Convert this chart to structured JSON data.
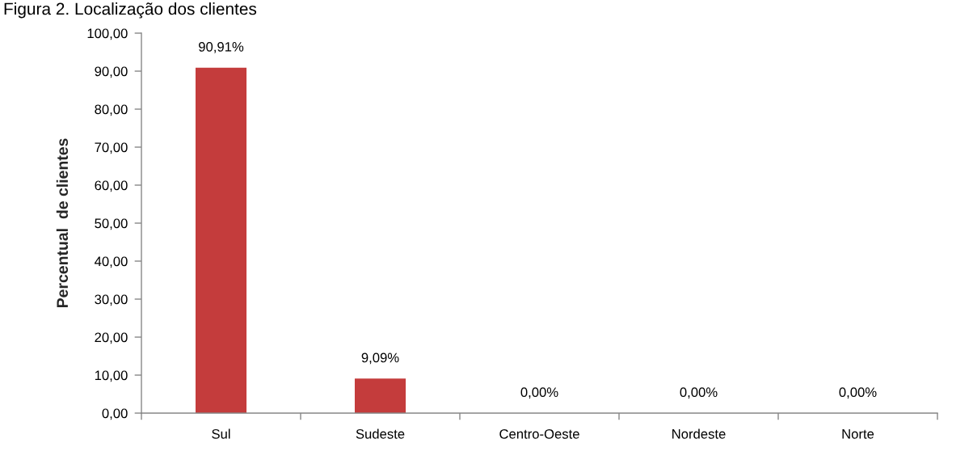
{
  "chart_data": {
    "type": "bar",
    "title": "Figura 2. Localização dos clientes",
    "ylabel": "Percentual  de clientes",
    "categories": [
      "Sul",
      "Sudeste",
      "Centro-Oeste",
      "Nordeste",
      "Norte"
    ],
    "values": [
      90.91,
      9.09,
      0,
      0,
      0
    ],
    "color": "#c43c3c",
    "value_labels": [
      "90,91%",
      "9,09%",
      "0,00%",
      "0,00%",
      "0,00%"
    ],
    "ylim": [
      0,
      100
    ],
    "yticks": [
      {
        "value": 0,
        "label": "0,00"
      },
      {
        "value": 10,
        "label": "10,00"
      },
      {
        "value": 20,
        "label": "20,00"
      },
      {
        "value": 30,
        "label": "30,00"
      },
      {
        "value": 40,
        "label": "40,00"
      },
      {
        "value": 50,
        "label": "50,00"
      },
      {
        "value": 60,
        "label": "60,00"
      },
      {
        "value": 70,
        "label": "70,00"
      },
      {
        "value": 80,
        "label": "80,00"
      },
      {
        "value": 90,
        "label": "90,00"
      },
      {
        "value": 100,
        "label": "100,00"
      }
    ],
    "grid": false
  }
}
